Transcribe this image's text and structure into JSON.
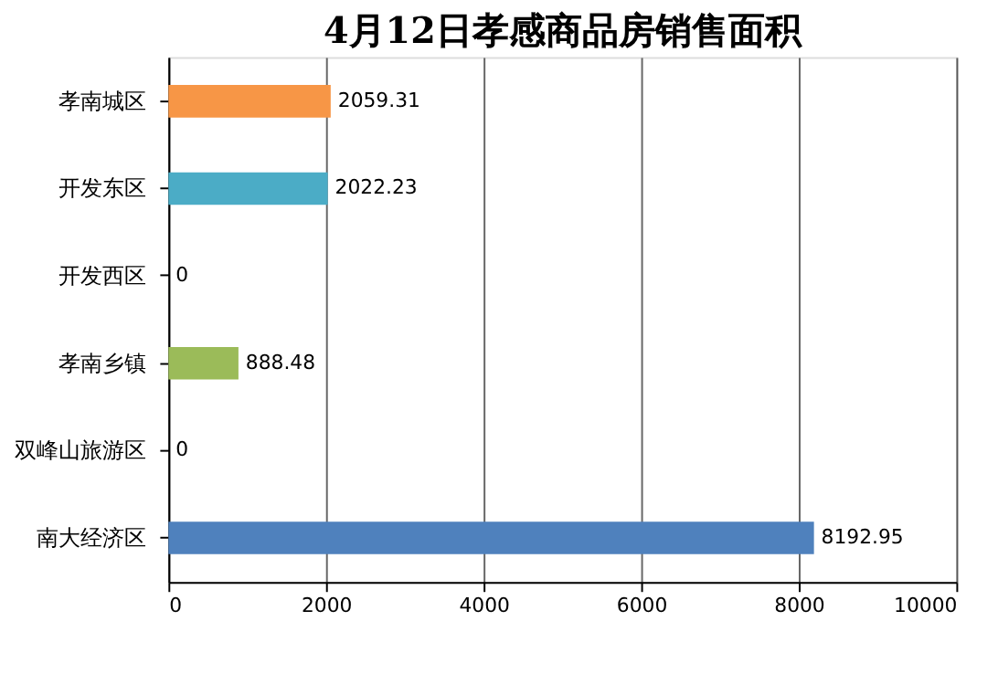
{
  "chart_data": {
    "type": "bar",
    "orientation": "horizontal",
    "title": "4月12日孝感商品房销售面积",
    "categories": [
      "孝南城区",
      "开发东区",
      "开发西区",
      "孝南乡镇",
      "双峰山旅游区",
      "南大经济区"
    ],
    "values": [
      2059.31,
      2022.23,
      0,
      888.48,
      0,
      8192.95
    ],
    "colors": [
      "#f79646",
      "#4bacc6",
      "#c0504d",
      "#9bbb59",
      "#8064a2",
      "#4f81bd"
    ],
    "xlim": [
      0,
      10000
    ],
    "xticks": [
      0,
      2000,
      4000,
      6000,
      8000,
      10000
    ],
    "grid": "x",
    "data_labels": true
  }
}
